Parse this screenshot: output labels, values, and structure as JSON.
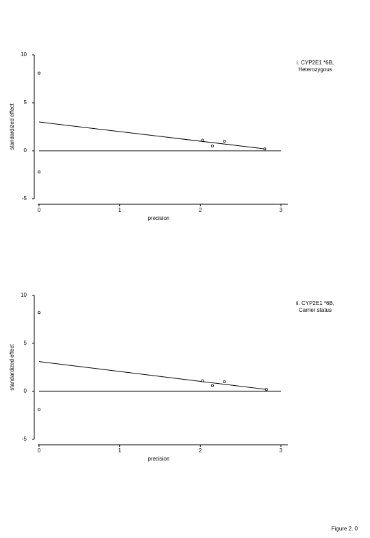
{
  "chart_data": [
    {
      "type": "scatter",
      "y_label": "standardized effect",
      "x_label": "precision",
      "annotation": [
        "i. CYP2E1 *6B,",
        "Heterozygous"
      ],
      "xlim": [
        0,
        3
      ],
      "ylim": [
        -5,
        10
      ],
      "xticks": [
        0,
        1,
        2,
        3
      ],
      "yticks": [
        -5,
        0,
        5,
        10
      ],
      "points": {
        "x": [
          0,
          0,
          2.03,
          2.15,
          2.3,
          2.8
        ],
        "values": [
          8.1,
          -2.2,
          1.1,
          0.5,
          1.0,
          0.2
        ]
      },
      "fit": {
        "x": [
          0,
          2.8
        ],
        "values": [
          3,
          0.2
        ]
      }
    },
    {
      "type": "scatter",
      "y_label": "standardized effect",
      "x_label": "precision",
      "annotation": [
        "ii. CYP2E1 *6B,",
        "Carrier status"
      ],
      "xlim": [
        0,
        3
      ],
      "ylim": [
        -5,
        10
      ],
      "xticks": [
        0,
        1,
        2,
        3
      ],
      "yticks": [
        -5,
        0,
        5,
        10
      ],
      "points": {
        "x": [
          0,
          0,
          2.03,
          2.15,
          2.3,
          2.82
        ],
        "values": [
          8.2,
          -1.9,
          1.1,
          0.6,
          1.0,
          0.2
        ]
      },
      "fit": {
        "x": [
          0,
          2.82
        ],
        "values": [
          3.1,
          0.2
        ]
      }
    }
  ],
  "figure_label": "Figure 2. 0"
}
